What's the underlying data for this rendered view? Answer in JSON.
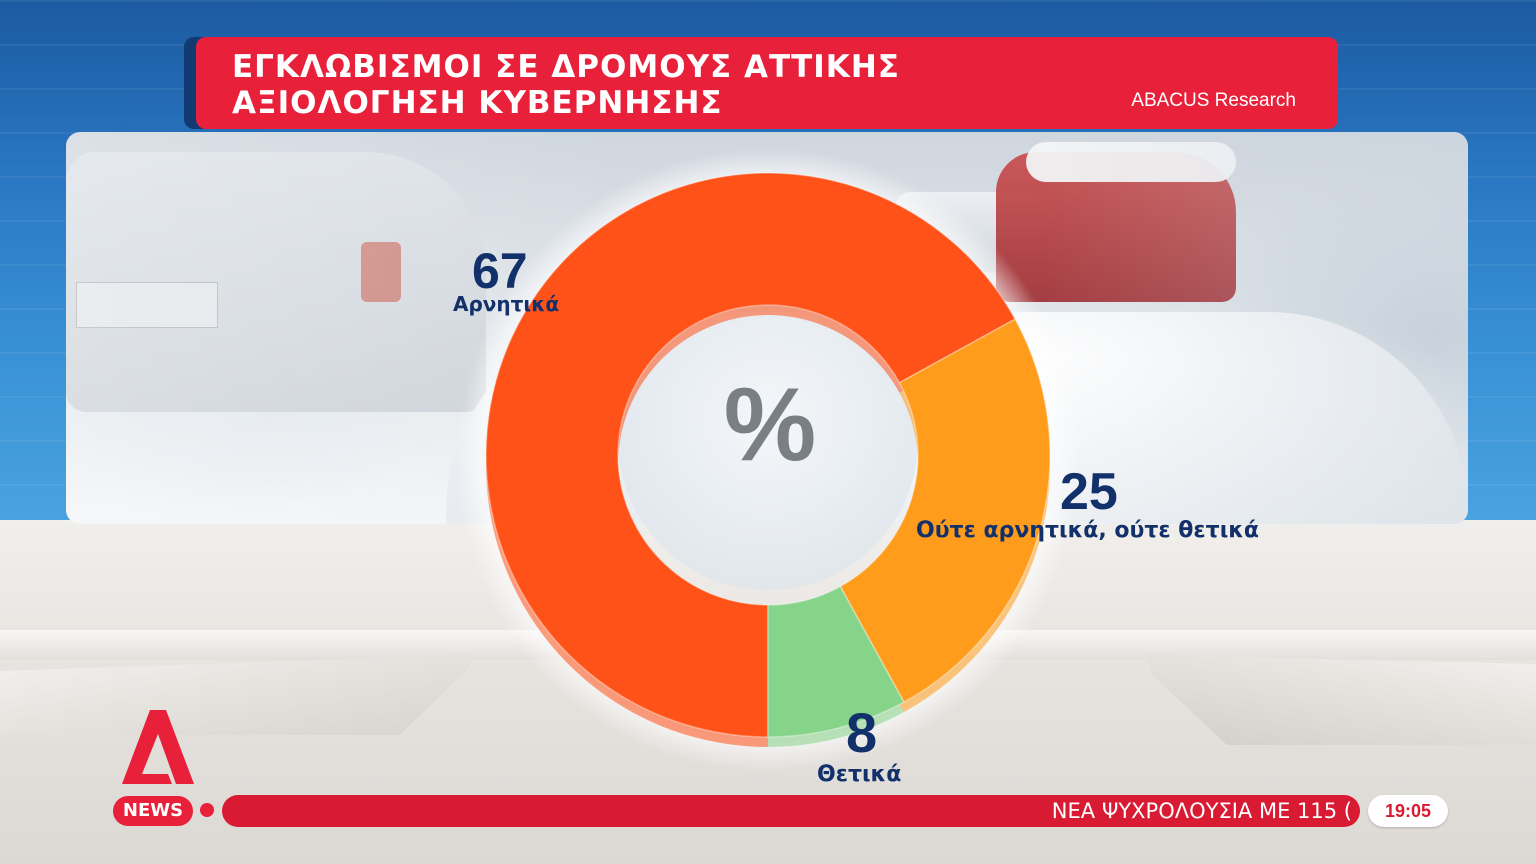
{
  "banner": {
    "title_line1": "ΕΓΚΛΩΒΙΣΜΟΙ ΣΕ ΔΡΟΜΟΥΣ ΑΤΤΙΚΗΣ",
    "title_line2": "ΑΞΙΟΛΟΓΗΣΗ ΚΥΒΕΡΝΗΣΗΣ",
    "source": "ABACUS Research"
  },
  "chart_data": {
    "type": "pie",
    "variant": "donut",
    "unit_label": "%",
    "slices": [
      {
        "label": "Αρνητικά",
        "value": 67,
        "color": "#ff5219"
      },
      {
        "label": "Ούτε αρνητικά, ούτε θετικά",
        "value": 25,
        "color": "#ff9c1c"
      },
      {
        "label": "Θετικά",
        "value": 8,
        "color": "#86d48a"
      }
    ],
    "legend": "labels-next-to-slices"
  },
  "labels": {
    "neg_value": "67",
    "neg_label": "Αρνητικά",
    "neutral_value": "25",
    "neutral_label": "Ούτε αρνητικά, ούτε θετικά",
    "pos_value": "8",
    "pos_label": "Θετικά"
  },
  "ticker": {
    "channel": "NEWS",
    "headline": "ΝΕΑ ΨΥΧΡΟΛΟΥΣΙΑ ΜΕ 115 (",
    "time": "19:05"
  },
  "colors": {
    "brand_red": "#e8203a",
    "label_navy": "#12306a"
  }
}
